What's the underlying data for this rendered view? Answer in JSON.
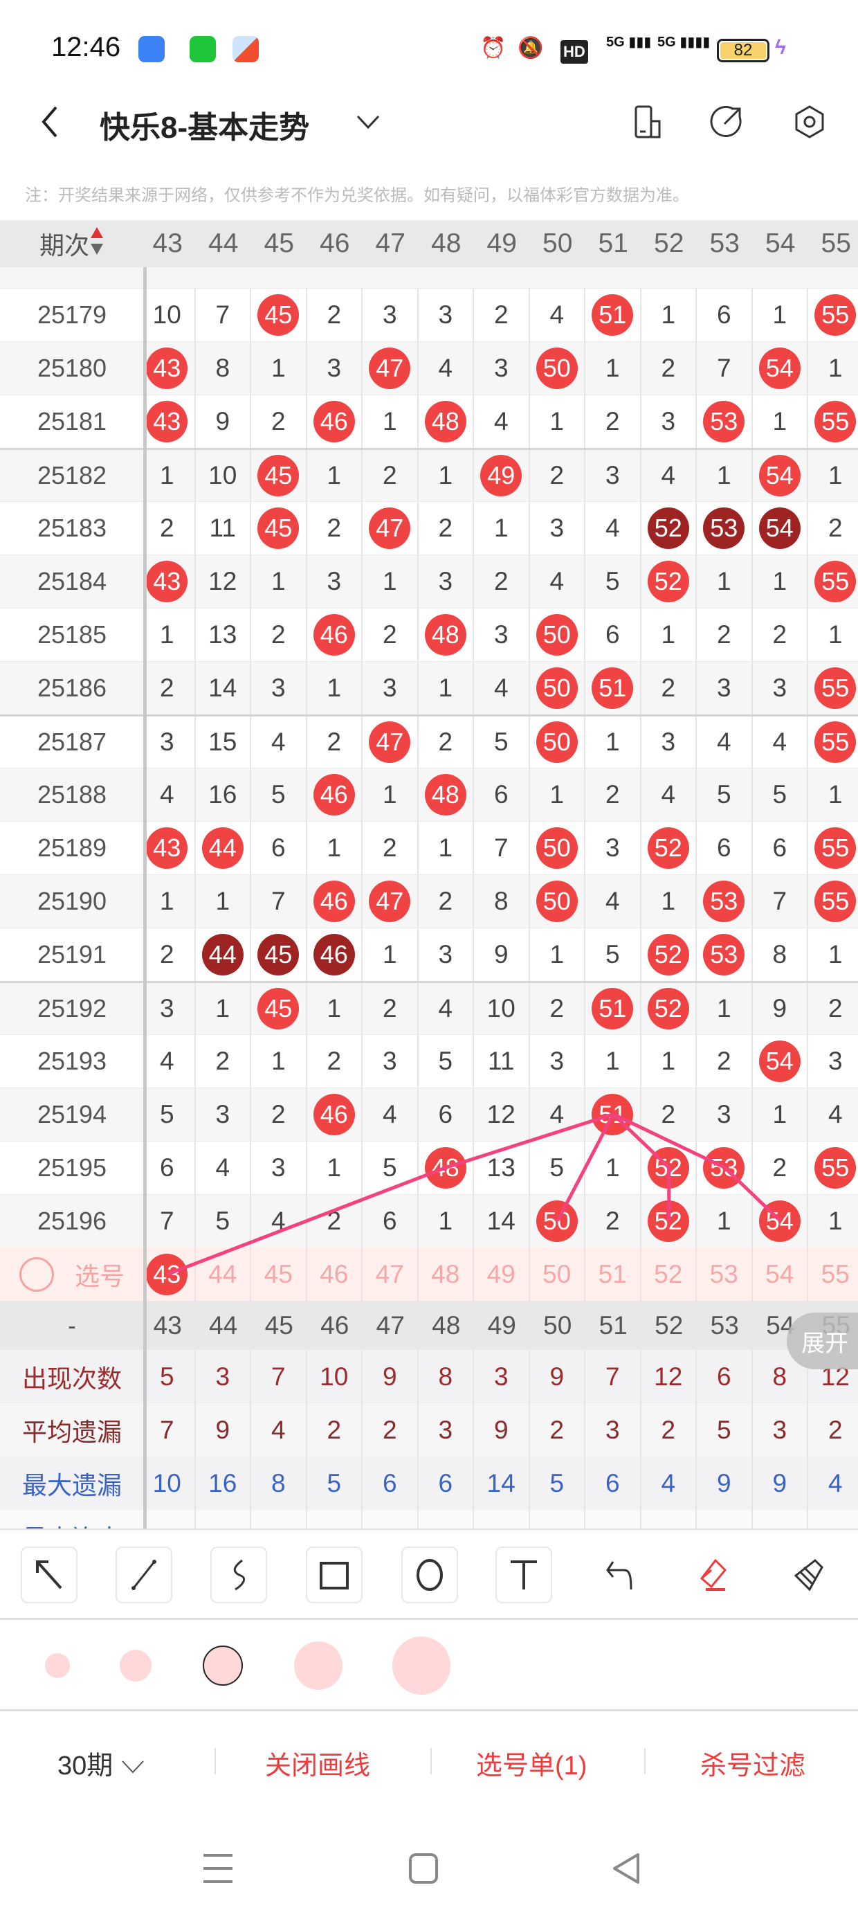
{
  "status_bar": {
    "time": "12:46",
    "network1": "5G",
    "network2": "5G",
    "battery": "82",
    "hd_badge": "HD"
  },
  "header": {
    "title": "快乐8-基本走势",
    "icons": [
      "back-icon",
      "chevron-down-icon",
      "phone-layout-icon",
      "share-icon",
      "settings-icon"
    ]
  },
  "note": "注：开奖结果来源于网络，仅供参考不作为兑奖依据。如有疑问，以福体彩官方数据为准。",
  "table": {
    "period_header": "期次",
    "columns": [
      "43",
      "44",
      "45",
      "46",
      "47",
      "48",
      "49",
      "50",
      "51",
      "52",
      "53",
      "54",
      "55"
    ],
    "colors": {
      "hit": "#f04343",
      "hit_dark": "#9e2424",
      "line": "#f4427f"
    },
    "rows": [
      {
        "period": "25179",
        "cells": [
          10,
          7,
          "45",
          2,
          3,
          3,
          2,
          4,
          "51",
          1,
          6,
          1,
          "55"
        ],
        "dark": []
      },
      {
        "period": "25180",
        "cells": [
          "43",
          8,
          1,
          3,
          "47",
          4,
          3,
          "50",
          1,
          2,
          7,
          "54",
          1
        ],
        "dark": []
      },
      {
        "period": "25181",
        "cells": [
          "43",
          9,
          2,
          "46",
          1,
          "48",
          4,
          1,
          2,
          3,
          "53",
          1,
          "55"
        ],
        "dark": []
      },
      {
        "period": "25182",
        "cells": [
          1,
          10,
          "45",
          1,
          2,
          1,
          "49",
          2,
          3,
          4,
          1,
          "54",
          1
        ],
        "dark": []
      },
      {
        "period": "25183",
        "cells": [
          2,
          11,
          "45",
          2,
          "47",
          2,
          1,
          3,
          4,
          "52",
          "53",
          "54",
          2
        ],
        "dark": [
          "52",
          "53",
          "54"
        ]
      },
      {
        "period": "25184",
        "cells": [
          "43",
          12,
          1,
          3,
          1,
          3,
          2,
          4,
          5,
          "52",
          1,
          1,
          "55"
        ],
        "dark": []
      },
      {
        "period": "25185",
        "cells": [
          1,
          13,
          2,
          "46",
          2,
          "48",
          3,
          "50",
          6,
          1,
          2,
          2,
          1
        ],
        "dark": []
      },
      {
        "period": "25186",
        "cells": [
          2,
          14,
          3,
          1,
          3,
          1,
          4,
          "50",
          "51",
          2,
          3,
          3,
          "55"
        ],
        "dark": []
      },
      {
        "period": "25187",
        "cells": [
          3,
          15,
          4,
          2,
          "47",
          2,
          5,
          "50",
          1,
          3,
          4,
          4,
          "55"
        ],
        "dark": []
      },
      {
        "period": "25188",
        "cells": [
          4,
          16,
          5,
          "46",
          1,
          "48",
          6,
          1,
          2,
          4,
          5,
          5,
          1
        ],
        "dark": []
      },
      {
        "period": "25189",
        "cells": [
          "43",
          "44",
          6,
          1,
          2,
          1,
          7,
          "50",
          3,
          "52",
          6,
          6,
          "55"
        ],
        "dark": []
      },
      {
        "period": "25190",
        "cells": [
          1,
          1,
          7,
          "46",
          "47",
          2,
          8,
          "50",
          4,
          1,
          "53",
          7,
          "55"
        ],
        "dark": []
      },
      {
        "period": "25191",
        "cells": [
          2,
          "44",
          "45",
          "46",
          1,
          3,
          9,
          1,
          5,
          "52",
          "53",
          8,
          1
        ],
        "dark": [
          "44",
          "45",
          "46"
        ]
      },
      {
        "period": "25192",
        "cells": [
          3,
          1,
          "45",
          1,
          2,
          4,
          10,
          2,
          "51",
          "52",
          1,
          9,
          2
        ],
        "dark": []
      },
      {
        "period": "25193",
        "cells": [
          4,
          2,
          1,
          2,
          3,
          5,
          11,
          3,
          1,
          1,
          2,
          "54",
          3
        ],
        "dark": []
      },
      {
        "period": "25194",
        "cells": [
          5,
          3,
          2,
          "46",
          4,
          6,
          12,
          4,
          "51",
          2,
          3,
          1,
          4
        ],
        "dark": []
      },
      {
        "period": "25195",
        "cells": [
          6,
          4,
          3,
          1,
          5,
          "48",
          13,
          5,
          1,
          "52",
          "53",
          2,
          "55"
        ],
        "dark": []
      },
      {
        "period": "25196",
        "cells": [
          7,
          5,
          4,
          2,
          6,
          1,
          14,
          "50",
          2,
          "52",
          1,
          "54",
          1
        ],
        "dark": []
      }
    ],
    "select_row": {
      "label": "选号",
      "selected": [
        "43"
      ]
    },
    "number_row_label": "-",
    "expand_label": "展开",
    "stats": [
      {
        "label": "出现次数",
        "values": [
          5,
          3,
          7,
          10,
          9,
          8,
          3,
          9,
          7,
          12,
          6,
          8,
          12
        ],
        "color": "#9b2c2c"
      },
      {
        "label": "平均遗漏",
        "values": [
          7,
          9,
          4,
          2,
          2,
          3,
          9,
          2,
          3,
          2,
          5,
          3,
          2
        ],
        "color": "#8a2b2b"
      },
      {
        "label": "最大遗漏",
        "values": [
          10,
          16,
          8,
          5,
          6,
          6,
          14,
          5,
          6,
          4,
          9,
          9,
          4
        ],
        "color": "#3a63c4"
      }
    ],
    "partial_stat_label": "最大连出",
    "drawn_lines": [
      [
        [
          "select",
          "43"
        ],
        [
          "25195",
          "48"
        ],
        [
          "25194",
          "51"
        ]
      ],
      [
        [
          "25194",
          "51"
        ],
        [
          "25196",
          "50"
        ]
      ],
      [
        [
          "25194",
          "51"
        ],
        [
          "25195",
          "52"
        ],
        [
          "25196",
          "52"
        ]
      ],
      [
        [
          "25194",
          "51"
        ],
        [
          "25195",
          "53"
        ],
        [
          "25196",
          "54"
        ]
      ]
    ]
  },
  "draw_tools": [
    "arrow-tool",
    "line-tool",
    "freehand-tool",
    "rectangle-tool",
    "circle-tool",
    "text-tool",
    "undo",
    "eraser",
    "clear-brush"
  ],
  "brush_sizes": {
    "count": 5,
    "selected_index": 2,
    "color": "#ffd9d9"
  },
  "bottom_bar": {
    "periods": "30期",
    "close_lines": "关闭画线",
    "selection_list": "选号单(1)",
    "kill_filter": "杀号过滤"
  }
}
